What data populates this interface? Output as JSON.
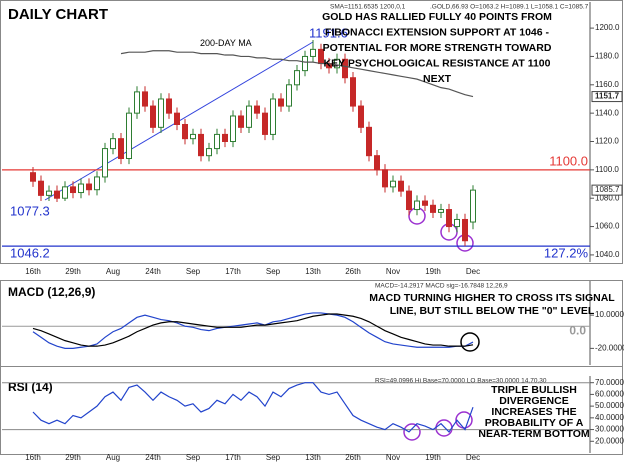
{
  "chart_data": [
    {
      "type": "candlestick",
      "title": "DAILY CHART",
      "info": [
        "SMA=1151.6535 1200,0,1",
        ".GOLD,66.93 O=1063.2 H=1089.1 L=1058.1 C=1085.7"
      ],
      "annotation": [
        "GOLD HAS RALLIED FULLY 40 POINTS FROM",
        "FIBONACCI EXTENSION SUPPORT AT 1046 -",
        "POTENTIAL FOR MORE STRENGTH TOWARD",
        "KEY PSYCHOLOGICAL RESISTANCE AT 1100",
        "NEXT"
      ],
      "categories": [
        "16th",
        null,
        null,
        null,
        null,
        "29th",
        null,
        null,
        null,
        null,
        "Aug",
        null,
        null,
        null,
        null,
        "24th",
        null,
        null,
        null,
        null,
        "Sep",
        null,
        null,
        null,
        null,
        "17th",
        null,
        null,
        null,
        null,
        "Sep",
        null,
        null,
        null,
        null,
        "13th",
        null,
        null,
        null,
        null,
        "26th",
        null,
        null,
        null,
        null,
        "Nov",
        null,
        null,
        null,
        null,
        "19th",
        null,
        null,
        null,
        null,
        "Dec"
      ],
      "open": [
        1098,
        1092,
        1082,
        1085,
        1080,
        1088,
        1084,
        1090,
        1086,
        1095,
        1115,
        1122,
        1108,
        1140,
        1155,
        1145,
        1130,
        1150,
        1140,
        1132,
        1122,
        1125,
        1110,
        1115,
        1125,
        1120,
        1138,
        1130,
        1145,
        1140,
        1125,
        1150,
        1145,
        1160,
        1170,
        1180,
        1185,
        1175,
        1172,
        1178,
        1165,
        1145,
        1130,
        1110,
        1100,
        1088,
        1092,
        1085,
        1072,
        1078,
        1075,
        1070,
        1072,
        1060,
        1065,
        1063.2
      ],
      "high": [
        1102,
        1096,
        1089,
        1089,
        1092,
        1092,
        1094,
        1094,
        1099,
        1119,
        1126,
        1126,
        1144,
        1159,
        1159,
        1149,
        1154,
        1154,
        1144,
        1136,
        1129,
        1129,
        1119,
        1129,
        1129,
        1142,
        1142,
        1149,
        1149,
        1144,
        1154,
        1154,
        1164,
        1174,
        1184,
        1191.6,
        1189,
        1179,
        1182,
        1182,
        1169,
        1149,
        1134,
        1114,
        1104,
        1096,
        1096,
        1089,
        1082,
        1082,
        1079,
        1076,
        1076,
        1069,
        1069,
        1089.1
      ],
      "low": [
        1088,
        1078,
        1078,
        1077.3,
        1078,
        1080,
        1080,
        1082,
        1082,
        1091,
        1111,
        1104,
        1104,
        1136,
        1141,
        1126,
        1126,
        1136,
        1128,
        1118,
        1118,
        1106,
        1106,
        1111,
        1116,
        1116,
        1126,
        1126,
        1136,
        1121,
        1121,
        1141,
        1141,
        1156,
        1166,
        1176,
        1171,
        1168,
        1168,
        1161,
        1141,
        1126,
        1106,
        1096,
        1084,
        1084,
        1081,
        1068,
        1068,
        1071,
        1066,
        1066,
        1056,
        1056,
        1046.2,
        1058.1
      ],
      "close": [
        1092,
        1082,
        1085,
        1080,
        1088,
        1084,
        1090,
        1086,
        1095,
        1115,
        1122,
        1108,
        1140,
        1155,
        1145,
        1130,
        1150,
        1140,
        1132,
        1122,
        1125,
        1110,
        1115,
        1125,
        1120,
        1138,
        1130,
        1145,
        1140,
        1125,
        1150,
        1145,
        1160,
        1170,
        1180,
        1185,
        1175,
        1172,
        1178,
        1165,
        1145,
        1130,
        1110,
        1100,
        1088,
        1092,
        1085,
        1072,
        1078,
        1075,
        1070,
        1072,
        1060,
        1065,
        1050,
        1085.7
      ],
      "up_color": "#2e7d32",
      "down_color": "#c62828",
      "series": [
        {
          "name": "200-DAY MA",
          "color": "#555555",
          "values": [
            null,
            null,
            null,
            null,
            null,
            null,
            null,
            null,
            null,
            null,
            null,
            1182,
            1183,
            1183,
            1183,
            1184,
            1184,
            1184,
            1183,
            1183,
            1183,
            1182,
            1182,
            1182,
            1181,
            1181,
            1180,
            1180,
            1179,
            1179,
            1178,
            1178,
            1177,
            1177,
            1176,
            1176,
            1175,
            1175,
            1174,
            1173,
            1172,
            1171,
            1170,
            1169,
            1168,
            1167,
            1166,
            1165,
            1164,
            1162,
            1160,
            1158,
            1157,
            1155,
            1153,
            1151.7
          ]
        }
      ],
      "levels": [
        {
          "value": 1100,
          "label": "1100.0",
          "color": "#e53935"
        },
        {
          "value": 1046.2,
          "label": "127.2%",
          "color": "#2233cc"
        }
      ],
      "ylim": [
        1035,
        1217
      ],
      "yticks": [
        {
          "value": 1040,
          "label": "1040.0"
        },
        {
          "value": 1060,
          "label": "1060.0"
        },
        {
          "value": 1080,
          "label": "1080.0"
        },
        {
          "value": 1100,
          "label": "1100.0"
        },
        {
          "value": 1120,
          "label": "1120.0"
        },
        {
          "value": 1140,
          "label": "1140.0"
        },
        {
          "value": 1160,
          "label": "1160.0"
        },
        {
          "value": 1180,
          "label": "1180.0"
        },
        {
          "value": 1200,
          "label": "1200.0"
        }
      ]
    },
    {
      "type": "line",
      "title": "MACD (12,26,9)",
      "info": [
        "MACD=-14.2917 MACD sig=-16.7848 12,26,9"
      ],
      "annotation": [
        "MACD TURNING HIGHER TO CROSS ITS SIGNAL",
        "LINE, BUT STILL BELOW THE \"0\" LEVEL"
      ],
      "series": [
        {
          "color": "#2244cc",
          "values": [
            -5,
            -10,
            -15,
            -18,
            -20,
            -20,
            -19,
            -18,
            -16,
            -10,
            -5,
            -2,
            3,
            8,
            10,
            8,
            6,
            5,
            3,
            0,
            -1,
            -3,
            -4,
            -2,
            -1,
            0,
            1,
            2,
            3,
            1,
            4,
            5,
            7,
            9,
            11,
            12,
            12,
            11,
            10,
            8,
            4,
            -1,
            -6,
            -10,
            -14,
            -16,
            -17,
            -18,
            -19,
            -19,
            -19,
            -19,
            -19,
            -18,
            -18,
            -14.2917
          ]
        },
        {
          "color": "#000000",
          "values": [
            -2,
            -4,
            -7,
            -10,
            -13,
            -15,
            -17,
            -18,
            -18,
            -17,
            -15,
            -12,
            -9,
            -5,
            -2,
            1,
            3,
            4,
            4,
            3,
            2,
            1,
            0,
            -1,
            -1,
            -1,
            -1,
            0,
            1,
            1,
            2,
            3,
            4,
            5,
            7,
            9,
            10,
            11,
            11,
            10,
            9,
            7,
            4,
            0,
            -4,
            -7,
            -10,
            -12,
            -14,
            -16,
            -17,
            -17,
            -18,
            -18,
            -18,
            -16.7848
          ]
        }
      ],
      "levels": [
        {
          "value": 0,
          "label": "0.0",
          "color": "#999999"
        }
      ],
      "ylim": [
        -35,
        39
      ],
      "yticks": [
        {
          "value": 10,
          "label": "10.0000"
        },
        {
          "value": -20,
          "label": "-20.0000"
        }
      ]
    },
    {
      "type": "line",
      "title": "RSI (14)",
      "info": [
        "RSI=49.0996 Hi Base=70.0000 LO Base=30.0000 14,70,30"
      ],
      "annotation": [
        "TRIPLE BULLISH",
        "DIVERGENCE",
        "INCREASES THE",
        "PROBABILITY OF A",
        "NEAR-TERM BOTTOM"
      ],
      "categories": [
        "16th",
        null,
        null,
        null,
        null,
        "29th",
        null,
        null,
        null,
        null,
        "Aug",
        null,
        null,
        null,
        null,
        "24th",
        null,
        null,
        null,
        null,
        "Sep",
        null,
        null,
        null,
        null,
        "17th",
        null,
        null,
        null,
        null,
        "Sep",
        null,
        null,
        null,
        null,
        "13th",
        null,
        null,
        null,
        null,
        "26th",
        null,
        null,
        null,
        null,
        "Nov",
        null,
        null,
        null,
        null,
        "19th",
        null,
        null,
        null,
        null,
        "Dec"
      ],
      "series": [
        {
          "color": "#2244cc",
          "values": [
            45,
            38,
            35,
            38,
            35,
            42,
            40,
            45,
            50,
            58,
            62,
            55,
            66,
            68,
            62,
            55,
            62,
            58,
            55,
            50,
            52,
            45,
            48,
            55,
            52,
            60,
            55,
            62,
            58,
            50,
            62,
            58,
            65,
            68,
            70,
            70,
            62,
            60,
            62,
            52,
            42,
            38,
            35,
            32,
            30,
            35,
            32,
            28,
            35,
            33,
            30,
            35,
            28,
            38,
            30,
            49.0996
          ]
        }
      ],
      "levels": [
        {
          "value": 70,
          "color": "#888888"
        },
        {
          "value": 30,
          "color": "#888888"
        }
      ],
      "ylim": [
        10,
        74
      ],
      "yticks": [
        {
          "value": 20,
          "label": "20.0000"
        },
        {
          "value": 30,
          "label": "30.0000"
        },
        {
          "value": 40,
          "label": "40.0000"
        },
        {
          "value": 50,
          "label": "50.0000"
        },
        {
          "value": 60,
          "label": "60.0000"
        },
        {
          "value": 70,
          "label": "70.0000"
        }
      ]
    }
  ]
}
